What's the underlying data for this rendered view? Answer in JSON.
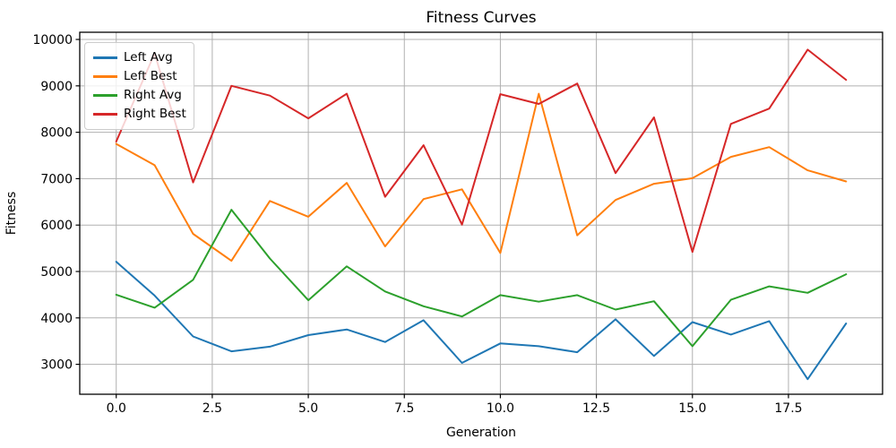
{
  "chart_data": {
    "type": "line",
    "title": "Fitness Curves",
    "xlabel": "Generation",
    "ylabel": "Fitness",
    "grid": true,
    "grid_color": "#b0b0b0",
    "background": "#ffffff",
    "legend_position": "upper left",
    "xlim": [
      -0.95,
      19.95
    ],
    "ylim": [
      2355,
      10155
    ],
    "x": [
      0,
      1,
      2,
      3,
      4,
      5,
      6,
      7,
      8,
      9,
      10,
      11,
      12,
      13,
      14,
      15,
      16,
      17,
      18,
      19
    ],
    "xticks": {
      "values": [
        0,
        2.5,
        5,
        7.5,
        10,
        12.5,
        15,
        17.5
      ],
      "labels": [
        "0.0",
        "2.5",
        "5.0",
        "7.5",
        "10.0",
        "12.5",
        "15.0",
        "17.5"
      ]
    },
    "yticks": {
      "values": [
        3000,
        4000,
        5000,
        6000,
        7000,
        8000,
        9000,
        10000
      ],
      "labels": [
        "3000",
        "4000",
        "5000",
        "6000",
        "7000",
        "8000",
        "9000",
        "10000"
      ]
    },
    "series": [
      {
        "name": "Left Avg",
        "color": "#1f77b4",
        "values": [
          5210,
          4480,
          3600,
          3280,
          3380,
          3630,
          3750,
          3480,
          3950,
          3030,
          3450,
          3390,
          3260,
          3970,
          3180,
          3910,
          3640,
          3930,
          2680,
          3880
        ]
      },
      {
        "name": "Left Best",
        "color": "#ff7f0e",
        "values": [
          7750,
          7290,
          5810,
          5230,
          6520,
          6180,
          6910,
          5540,
          6560,
          6770,
          5400,
          8830,
          5780,
          6540,
          6890,
          7010,
          7470,
          7680,
          7180,
          6940
        ]
      },
      {
        "name": "Right Avg",
        "color": "#2ca02c",
        "values": [
          4500,
          4220,
          4820,
          6330,
          5280,
          4380,
          5110,
          4570,
          4250,
          4030,
          4490,
          4350,
          4490,
          4180,
          4360,
          3390,
          4390,
          4680,
          4540,
          4940
        ]
      },
      {
        "name": "Right Best",
        "color": "#d62728",
        "values": [
          7800,
          9700,
          6920,
          9000,
          8790,
          8300,
          8830,
          6610,
          7720,
          6010,
          8820,
          8610,
          9050,
          7120,
          8320,
          5420,
          8180,
          8510,
          9780,
          9130
        ]
      }
    ]
  }
}
